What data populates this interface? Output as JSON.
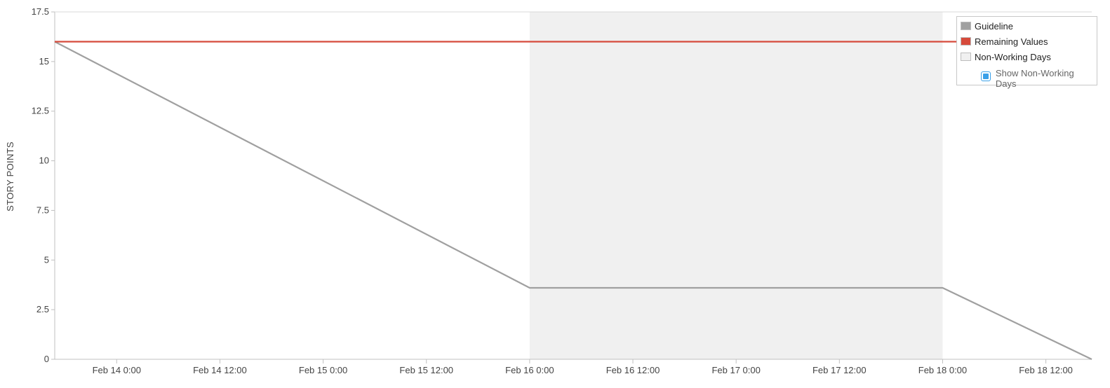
{
  "chart_data": {
    "type": "line",
    "title": "",
    "xlabel": "",
    "ylabel": "STORY POINTS",
    "ylim": [
      0,
      17.5
    ],
    "xlim": [
      "2024-02-13 16:48",
      "2024-02-18 17:20"
    ],
    "y_ticks": [
      {
        "value": 0,
        "label": "0"
      },
      {
        "value": 2.5,
        "label": "2.5"
      },
      {
        "value": 5,
        "label": "5"
      },
      {
        "value": 7.5,
        "label": "7.5"
      },
      {
        "value": 10,
        "label": "10"
      },
      {
        "value": 12.5,
        "label": "12.5"
      },
      {
        "value": 15,
        "label": "15"
      },
      {
        "value": 17.5,
        "label": "17.5"
      }
    ],
    "x_ticks": [
      {
        "value": "2024-02-14 00:00",
        "label": "Feb 14 0:00"
      },
      {
        "value": "2024-02-14 12:00",
        "label": "Feb 14 12:00"
      },
      {
        "value": "2024-02-15 00:00",
        "label": "Feb 15 0:00"
      },
      {
        "value": "2024-02-15 12:00",
        "label": "Feb 15 12:00"
      },
      {
        "value": "2024-02-16 00:00",
        "label": "Feb 16 0:00"
      },
      {
        "value": "2024-02-16 12:00",
        "label": "Feb 16 12:00"
      },
      {
        "value": "2024-02-17 00:00",
        "label": "Feb 17 0:00"
      },
      {
        "value": "2024-02-17 12:00",
        "label": "Feb 17 12:00"
      },
      {
        "value": "2024-02-18 00:00",
        "label": "Feb 18 0:00"
      },
      {
        "value": "2024-02-18 12:00",
        "label": "Feb 18 12:00"
      }
    ],
    "non_working_days": [
      {
        "start": "2024-02-16 00:00",
        "end": "2024-02-18 00:00"
      }
    ],
    "series": [
      {
        "name": "Guideline",
        "color": "#a0a0a0",
        "points": [
          {
            "x": "2024-02-13 16:48",
            "y": 16
          },
          {
            "x": "2024-02-16 00:00",
            "y": 3.6
          },
          {
            "x": "2024-02-18 00:00",
            "y": 3.6
          },
          {
            "x": "2024-02-18 17:20",
            "y": 0
          }
        ]
      },
      {
        "name": "Remaining Values",
        "color": "#d64a3b",
        "points": [
          {
            "x": "2024-02-13 16:48",
            "y": 16
          },
          {
            "x": "2024-02-18 17:20",
            "y": 16
          }
        ]
      }
    ],
    "legend": {
      "placement": "top-right",
      "items": [
        {
          "label": "Guideline",
          "color": "#a0a0a0"
        },
        {
          "label": "Remaining Values",
          "color": "#d64a3b"
        },
        {
          "label": "Non-Working Days",
          "color": "#f0f0f0"
        }
      ],
      "toggle_label": "Show Non-Working Days",
      "toggle_checked": true,
      "toggle_color": "#3aa0e8"
    },
    "grid": false,
    "colors": {
      "axis": "#c0c0c0",
      "non_working_fill": "#f0f0f0"
    }
  }
}
